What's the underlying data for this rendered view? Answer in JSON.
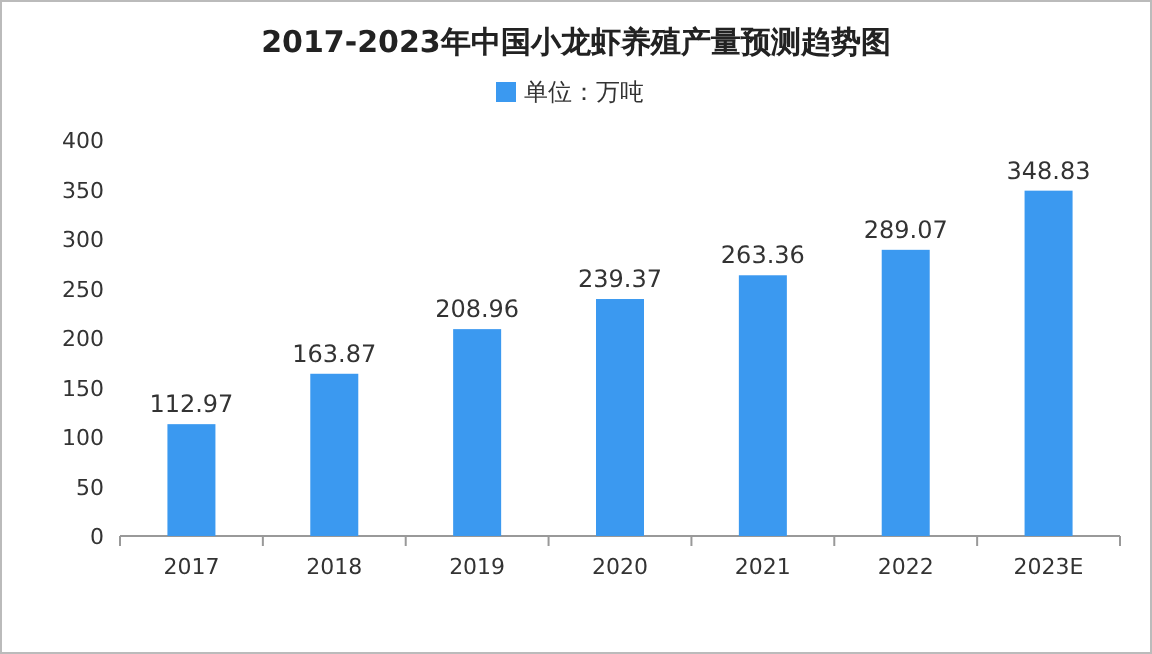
{
  "chart_data": {
    "type": "bar",
    "title": "2017-2023年中国小龙虾养殖产量预测趋势图",
    "categories": [
      "2017",
      "2018",
      "2019",
      "2020",
      "2021",
      "2022",
      "2023E"
    ],
    "series": [
      {
        "name": "单位：万吨",
        "color": "#3b99f0",
        "values": [
          112.97,
          163.87,
          208.96,
          239.37,
          263.36,
          289.07,
          348.83
        ]
      }
    ],
    "ylim": [
      0,
      400
    ],
    "yticks": [
      0,
      50,
      100,
      150,
      200,
      250,
      300,
      350,
      400
    ],
    "data_labels": true,
    "legend": "top",
    "grid": false
  }
}
